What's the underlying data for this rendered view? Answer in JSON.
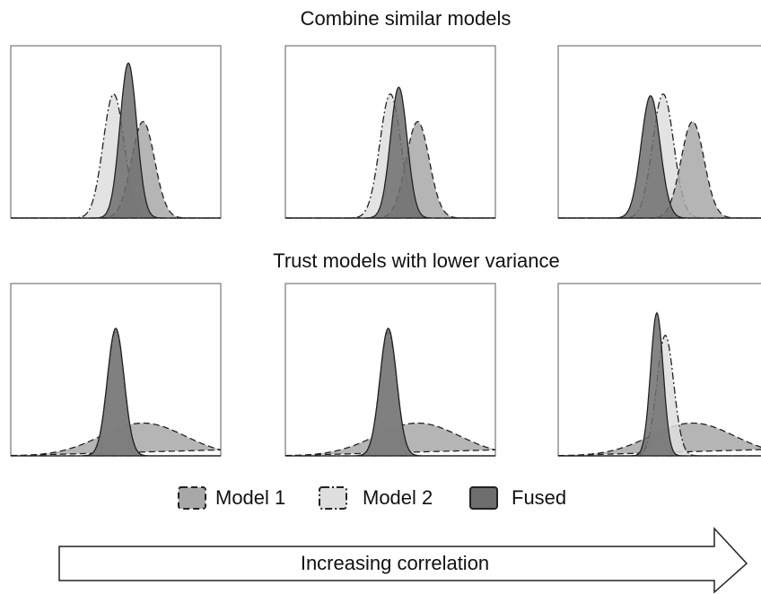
{
  "rows": [
    {
      "title": "Combine similar models"
    },
    {
      "title": "Trust models with lower variance"
    }
  ],
  "legend": [
    {
      "label": "Model 1"
    },
    {
      "label": "Model 2"
    },
    {
      "label": "Fused"
    }
  ],
  "arrow_label": "Increasing correlation"
}
